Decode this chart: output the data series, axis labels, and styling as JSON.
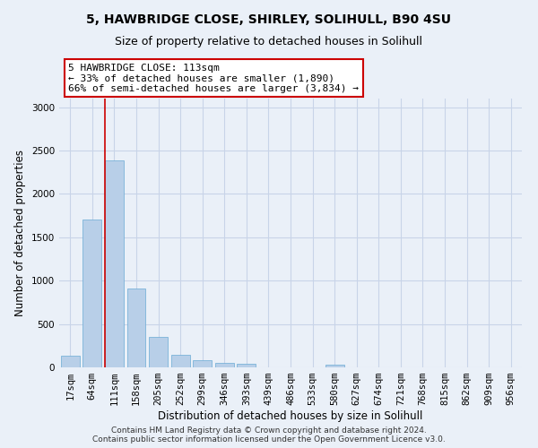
{
  "title1": "5, HAWBRIDGE CLOSE, SHIRLEY, SOLIHULL, B90 4SU",
  "title2": "Size of property relative to detached houses in Solihull",
  "xlabel": "Distribution of detached houses by size in Solihull",
  "ylabel": "Number of detached properties",
  "categories": [
    "17sqm",
    "64sqm",
    "111sqm",
    "158sqm",
    "205sqm",
    "252sqm",
    "299sqm",
    "346sqm",
    "393sqm",
    "439sqm",
    "486sqm",
    "533sqm",
    "580sqm",
    "627sqm",
    "674sqm",
    "721sqm",
    "768sqm",
    "815sqm",
    "862sqm",
    "909sqm",
    "956sqm"
  ],
  "values": [
    130,
    1700,
    2390,
    910,
    350,
    140,
    80,
    55,
    40,
    0,
    0,
    0,
    35,
    0,
    0,
    0,
    0,
    0,
    0,
    0,
    0
  ],
  "bar_color": "#b8cfe8",
  "bar_edge_color": "#6aaad4",
  "vline_bar_index": 2,
  "vline_color": "#cc0000",
  "annotation_text": "5 HAWBRIDGE CLOSE: 113sqm\n← 33% of detached houses are smaller (1,890)\n66% of semi-detached houses are larger (3,834) →",
  "annotation_box_color": "#ffffff",
  "annotation_box_edge": "#cc0000",
  "ylim": [
    0,
    3100
  ],
  "yticks": [
    0,
    500,
    1000,
    1500,
    2000,
    2500,
    3000
  ],
  "grid_color": "#c8d4e8",
  "background_color": "#eaf0f8",
  "plot_bg_color": "#eaf0f8",
  "footer": "Contains HM Land Registry data © Crown copyright and database right 2024.\nContains public sector information licensed under the Open Government Licence v3.0.",
  "title1_fontsize": 10,
  "title2_fontsize": 9,
  "xlabel_fontsize": 8.5,
  "ylabel_fontsize": 8.5,
  "tick_fontsize": 7.5,
  "annotation_fontsize": 8,
  "footer_fontsize": 6.5
}
